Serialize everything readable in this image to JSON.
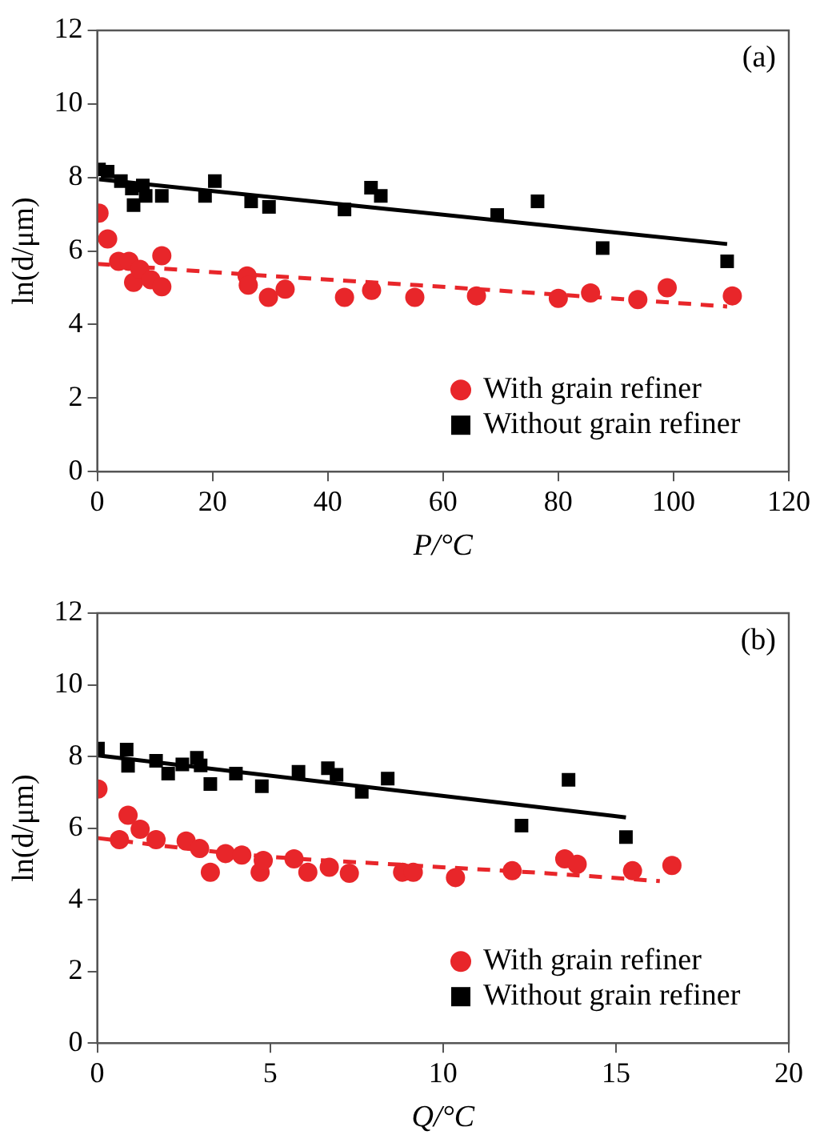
{
  "chart_data": [
    {
      "type": "scatter",
      "xlabel": "P/°C",
      "ylabel": "ln(d/μm)",
      "annotations": [
        "(a)"
      ],
      "xlim": [
        0,
        120
      ],
      "xticks": [
        0,
        20,
        40,
        60,
        80,
        100,
        120
      ],
      "ylim": [
        0,
        12
      ],
      "yticks": [
        0,
        2,
        4,
        6,
        8,
        10,
        12
      ],
      "grid": false,
      "legend": "bottom right",
      "series": [
        {
          "name": "With grain refiner",
          "color": "#e8262a",
          "marker": "circle",
          "x": [
            0.3,
            1.8,
            3.7,
            5.5,
            6.3,
            7.4,
            9.3,
            11.2,
            11.2,
            26.0,
            26.2,
            29.7,
            32.6,
            42.9,
            47.6,
            55.1,
            65.8,
            80.0,
            85.6,
            93.8,
            98.9,
            110.2
          ],
          "values": [
            7.03,
            6.33,
            5.72,
            5.72,
            5.15,
            5.5,
            5.22,
            5.87,
            5.03,
            5.32,
            5.07,
            4.74,
            4.96,
            4.74,
            4.93,
            4.74,
            4.78,
            4.71,
            4.86,
            4.68,
            5.0,
            4.78
          ]
        },
        {
          "name": "Without grain refiner",
          "color": "#000000",
          "marker": "square",
          "x": [
            0.3,
            1.8,
            4.1,
            6.0,
            6.3,
            7.9,
            8.4,
            11.2,
            18.7,
            20.4,
            26.7,
            29.8,
            42.9,
            47.5,
            49.2,
            69.4,
            76.4,
            87.7,
            109.3
          ],
          "values": [
            8.22,
            8.16,
            7.9,
            7.7,
            7.25,
            7.78,
            7.5,
            7.5,
            7.5,
            7.9,
            7.35,
            7.2,
            7.13,
            7.72,
            7.5,
            6.98,
            7.35,
            6.08,
            5.72
          ]
        },
        {
          "type": "line",
          "color": "#e8262a",
          "marker": "none",
          "line_style": "dashed",
          "x": [
            0,
            26.2,
            55.7,
            84,
            109.3
          ],
          "values": [
            5.65,
            5.36,
            5.07,
            4.77,
            4.49
          ]
        },
        {
          "type": "line",
          "color": "#000000",
          "marker": "none",
          "line_style": "solid",
          "x": [
            0.3,
            109.3
          ],
          "values": [
            7.95,
            6.19
          ]
        }
      ]
    },
    {
      "type": "scatter",
      "xlabel": "Q/°C",
      "ylabel": "ln(d/μm)",
      "annotations": [
        "(b)"
      ],
      "xlim": [
        0,
        20
      ],
      "xticks": [
        0,
        5,
        10,
        15,
        20
      ],
      "ylim": [
        0,
        12
      ],
      "yticks": [
        0,
        2,
        4,
        6,
        8,
        10,
        12
      ],
      "grid": false,
      "legend": "bottom right",
      "series": [
        {
          "name": "With grain refiner",
          "color": "#e8262a",
          "marker": "circle",
          "x": [
            0.02,
            0.89,
            0.64,
            1.24,
            1.7,
            2.57,
            2.96,
            3.27,
            3.71,
            4.18,
            4.71,
            4.8,
            5.69,
            6.09,
            6.71,
            7.29,
            8.83,
            9.14,
            10.36,
            12.0,
            13.52,
            13.88,
            15.48,
            16.62
          ],
          "values": [
            7.09,
            6.36,
            5.68,
            5.97,
            5.68,
            5.64,
            5.43,
            4.77,
            5.29,
            5.25,
            4.77,
            5.1,
            5.14,
            4.77,
            4.91,
            4.74,
            4.77,
            4.77,
            4.62,
            4.81,
            5.14,
            4.99,
            4.81,
            4.96
          ]
        },
        {
          "name": "Without grain refiner",
          "color": "#000000",
          "marker": "square",
          "x": [
            0.02,
            0.85,
            0.89,
            1.7,
            2.05,
            2.46,
            2.88,
            2.99,
            3.27,
            4.01,
            4.76,
            5.82,
            6.67,
            6.92,
            7.65,
            8.4,
            12.27,
            13.63,
            15.29
          ],
          "values": [
            8.22,
            8.19,
            7.74,
            7.88,
            7.52,
            7.78,
            7.96,
            7.75,
            7.23,
            7.52,
            7.17,
            7.57,
            7.67,
            7.49,
            7.01,
            7.38,
            6.07,
            7.35,
            5.75
          ]
        },
        {
          "type": "line",
          "color": "#e8262a",
          "marker": "none",
          "line_style": "dashed",
          "x": [
            0.02,
            4.38,
            9.08,
            12.99,
            16.27
          ],
          "values": [
            5.72,
            5.25,
            4.96,
            4.74,
            4.52
          ]
        },
        {
          "type": "line",
          "color": "#000000",
          "marker": "none",
          "line_style": "solid",
          "x": [
            0.02,
            15.29
          ],
          "values": [
            8.03,
            6.3
          ]
        }
      ]
    }
  ]
}
